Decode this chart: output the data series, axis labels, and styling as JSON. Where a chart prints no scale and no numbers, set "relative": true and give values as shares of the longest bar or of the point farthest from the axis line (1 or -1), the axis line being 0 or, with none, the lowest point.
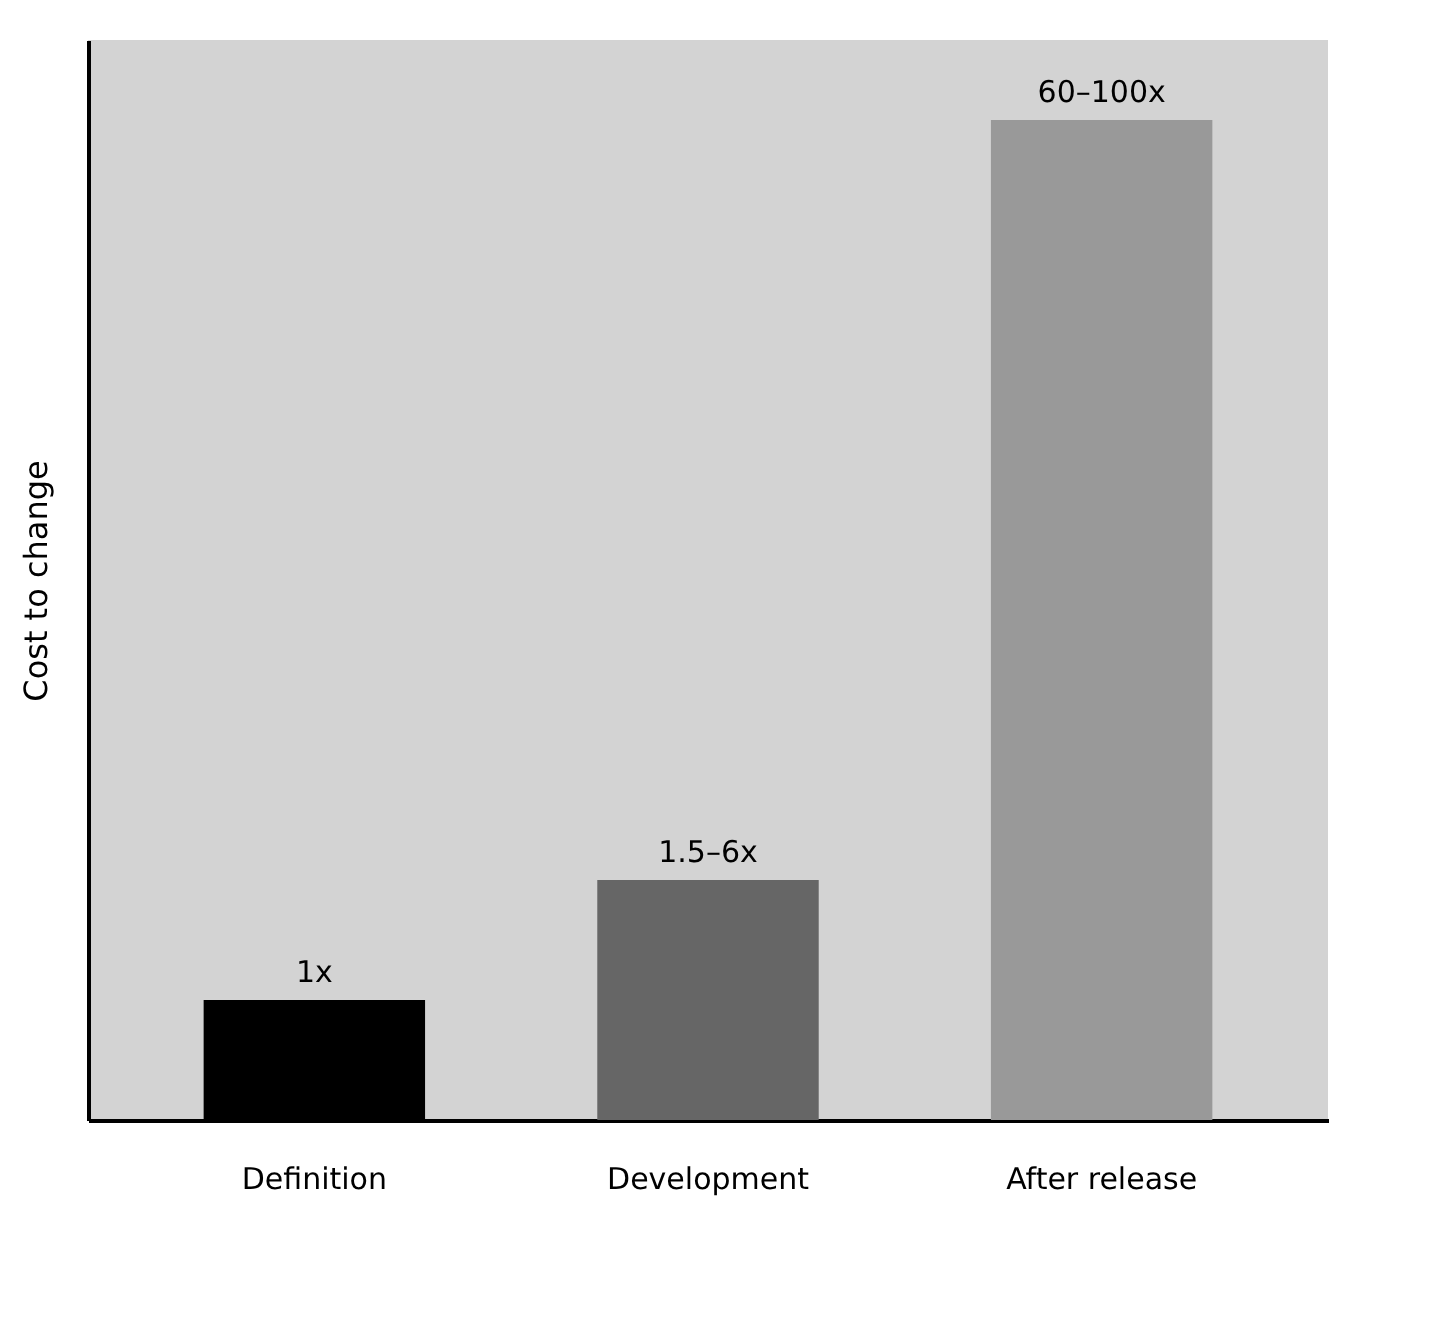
{
  "chart_data": {
    "type": "bar",
    "ylabel": "Cost to change",
    "categories": [
      "Definition",
      "Development",
      "After release"
    ],
    "values": [
      0.12,
      0.24,
      1
    ],
    "colors": [
      "#000000",
      "#666666",
      "#999999"
    ],
    "annotations": [
      {
        "text": "1x",
        "x": "Definition",
        "y": 0.12
      },
      {
        "text": "1.5–6x",
        "x": "Development",
        "y": 0.24
      },
      {
        "text": "60–100x",
        "x": "After release",
        "y": 1
      }
    ],
    "relative": true,
    "grid": false,
    "legend": false
  }
}
